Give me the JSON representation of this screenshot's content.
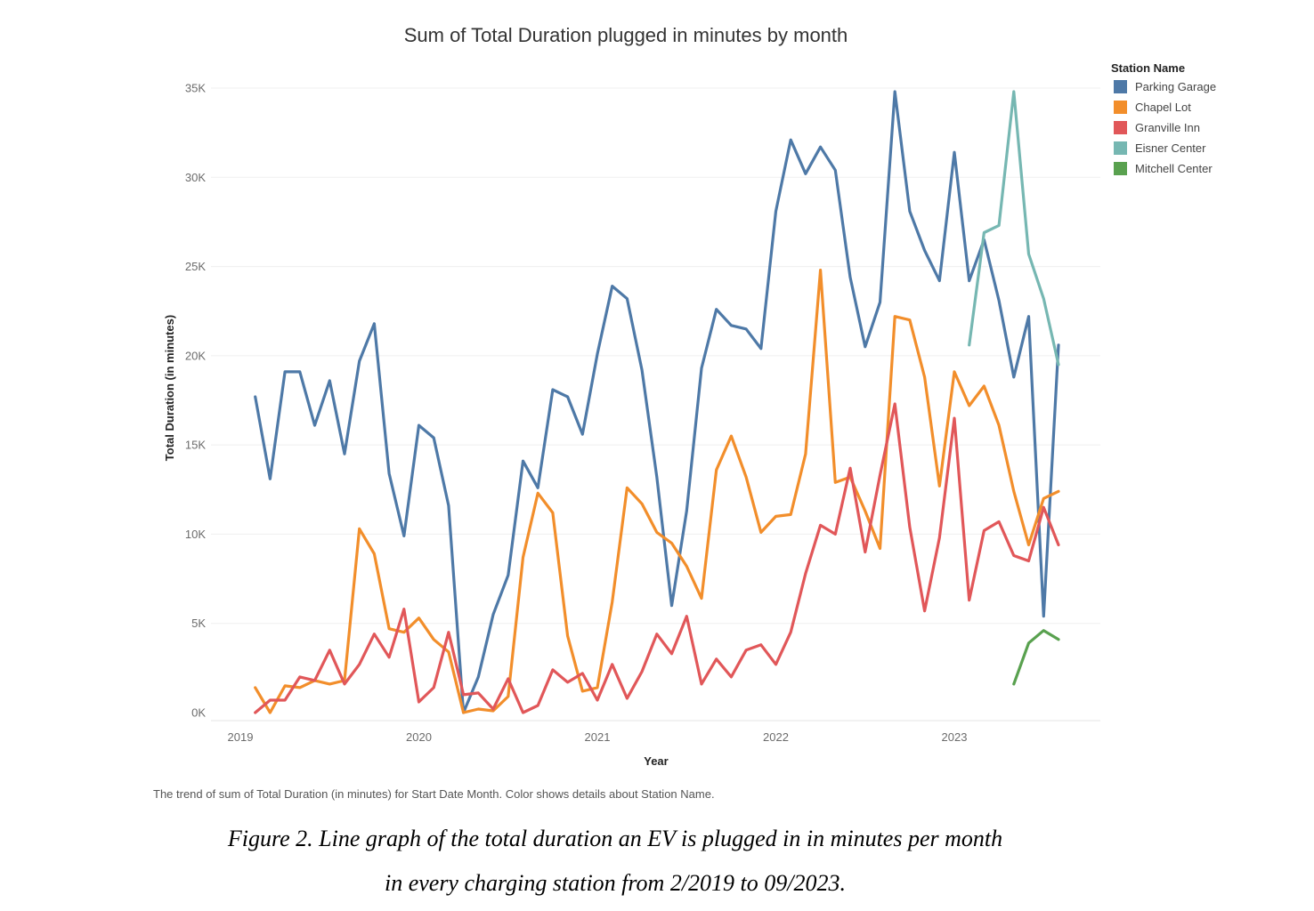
{
  "chart_data": {
    "type": "line",
    "title": "Sum of Total Duration plugged in minutes by month",
    "xlabel": "Year",
    "ylabel": "Total Duration (in minutes)",
    "x_ticks": [
      "2019",
      "2020",
      "2021",
      "2022",
      "2023"
    ],
    "x_range": [
      "2019-01",
      "2023-10"
    ],
    "y_ticks": [
      "0K",
      "5K",
      "10K",
      "15K",
      "20K",
      "25K",
      "30K",
      "35K"
    ],
    "ylim": [
      0,
      35000
    ],
    "grid": "horizontal",
    "legend": {
      "title": "Station Name",
      "placement": "top-right"
    },
    "series": [
      {
        "name": "Parking Garage",
        "color": "#4e79a7",
        "start": "2019-02",
        "values": [
          17700,
          13100,
          19100,
          19100,
          16100,
          18600,
          14500,
          19700,
          21800,
          13400,
          9900,
          16100,
          15400,
          11600,
          0,
          2000,
          5500,
          7700,
          14100,
          12600,
          18100,
          17700,
          15600,
          20100,
          23900,
          23200,
          19200,
          13200,
          6000,
          11300,
          19300,
          22600,
          21700,
          21500,
          20400,
          28100,
          32100,
          30200,
          31700,
          30400,
          24400,
          20500,
          23000,
          34800,
          28100,
          25900,
          24200,
          31400,
          24200,
          26500,
          23100,
          18800,
          22200,
          5400,
          20600
        ]
      },
      {
        "name": "Chapel Lot",
        "color": "#f28e2b",
        "start": "2019-02",
        "values": [
          1400,
          0,
          1500,
          1400,
          1800,
          1600,
          1800,
          10300,
          8900,
          4700,
          4500,
          5300,
          4100,
          3400,
          0,
          200,
          100,
          900,
          8700,
          12300,
          11200,
          4300,
          1200,
          1400,
          6200,
          12600,
          11700,
          10100,
          9500,
          8200,
          6400,
          13600,
          15500,
          13200,
          10100,
          11000,
          11100,
          14500,
          24800,
          12900,
          13200,
          11300,
          9200,
          22200,
          22000,
          18800,
          12700,
          19100,
          17200,
          18300,
          16100,
          12400,
          9400,
          12000,
          12400
        ]
      },
      {
        "name": "Granville Inn",
        "color": "#e15759",
        "start": "2019-02",
        "values": [
          0,
          700,
          700,
          2000,
          1800,
          3500,
          1600,
          2700,
          4400,
          3100,
          5800,
          600,
          1400,
          4500,
          1000,
          1100,
          200,
          1900,
          0,
          400,
          2400,
          1700,
          2200,
          700,
          2700,
          800,
          2300,
          4400,
          3300,
          5400,
          1600,
          3000,
          2000,
          3500,
          3800,
          2700,
          4500,
          7800,
          10500,
          10000,
          13700,
          9000,
          13300,
          17300,
          10400,
          5700,
          9800,
          16500,
          6300,
          10200,
          10700,
          8800,
          8500,
          11500,
          9400
        ]
      },
      {
        "name": "Eisner Center",
        "color": "#76b7b2",
        "start": "2023-02",
        "values": [
          20600,
          26900,
          27300,
          34800,
          25700,
          23200,
          19500
        ]
      },
      {
        "name": "Mitchell Center",
        "color": "#59a14f",
        "start": "2023-05",
        "values": [
          1600,
          3900,
          4600,
          4100
        ]
      }
    ]
  },
  "footnote": "The trend of sum of Total Duration (in minutes) for Start Date Month.  Color shows details about Station Name.",
  "caption": {
    "line1": "Figure 2. Line graph of the total duration an EV is plugged in in minutes per month",
    "line2": "in every charging station from 2/2019 to 09/2023."
  }
}
